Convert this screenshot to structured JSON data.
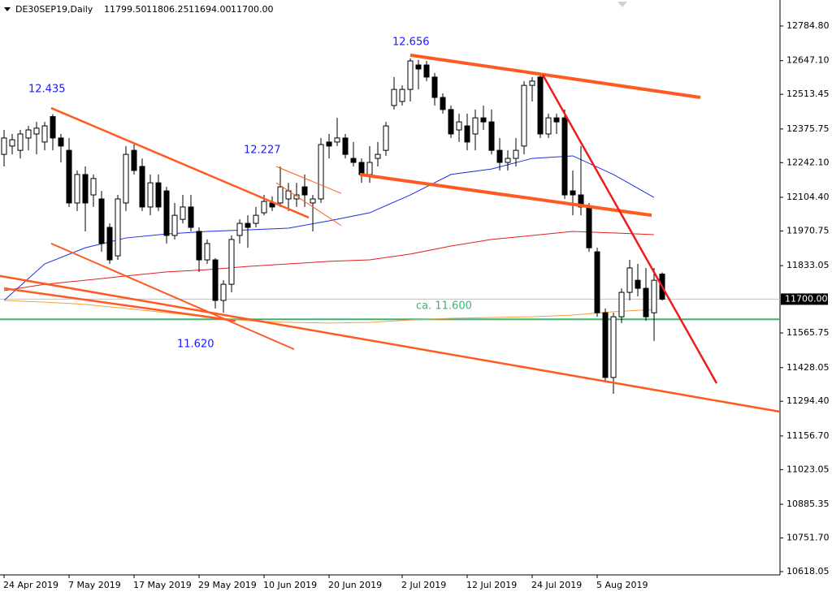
{
  "chart_data": {
    "type": "candlestick",
    "title": "DE30SEP19,Daily",
    "ohlc_labels": [
      "11799.50",
      "11806.25",
      "11694.00",
      "11700.00"
    ],
    "categories": [
      "24 Apr 2019",
      null,
      null,
      null,
      null,
      null,
      null,
      null,
      "7 May 2019",
      null,
      null,
      null,
      null,
      null,
      null,
      null,
      "17 May 2019",
      null,
      null,
      null,
      null,
      null,
      null,
      null,
      "29 May 2019",
      null,
      null,
      null,
      null,
      null,
      null,
      null,
      "10 Jun 2019",
      null,
      null,
      null,
      null,
      null,
      null,
      null,
      "20 Jun 2019",
      null,
      null,
      null,
      null,
      null,
      null,
      null,
      null,
      "2 Jul 2019",
      null,
      null,
      null,
      null,
      null,
      null,
      null,
      "12 Jul 2019",
      null,
      null,
      null,
      null,
      null,
      null,
      null,
      "24 Jul 2019",
      null,
      null,
      null,
      null,
      null,
      null,
      null,
      "5 Aug 2019",
      null,
      null,
      null,
      null,
      null,
      null,
      null,
      null
    ],
    "open": [
      12275,
      12308,
      12291,
      12340,
      12356,
      12324,
      12425,
      12340,
      12291,
      12082,
      12195,
      12114,
      12098,
      11985,
      11872,
      12082,
      12291,
      12227,
      12066,
      12162,
      12130,
      11953,
      12017,
      12066,
      11969,
      11856,
      11856,
      11695,
      11759,
      11953,
      12001,
      12001,
      12043,
      12082,
      12082,
      12098,
      12098,
      12146,
      12082,
      12098,
      12324,
      12324,
      12340,
      12259,
      12243,
      12195,
      12259,
      12291,
      12469,
      12485,
      12533,
      12630,
      12630,
      12582,
      12501,
      12453,
      12372,
      12388,
      12356,
      12420,
      12404,
      12291,
      12243,
      12259,
      12308,
      12549,
      12582,
      12356,
      12420,
      12420,
      12130,
      12114,
      12066,
      11888,
      11646,
      11389,
      11630,
      11727,
      11775,
      11743,
      11646,
      11799.5
    ],
    "high": [
      12372,
      12356,
      12372,
      12388,
      12404,
      12404,
      12435,
      12356,
      12340,
      12211,
      12227,
      12195,
      12130,
      12001,
      12114,
      12308,
      12314,
      12259,
      12195,
      12195,
      12146,
      12082,
      12114,
      12114,
      11985,
      11937,
      11863,
      11775,
      11953,
      12017,
      12033,
      12066,
      12114,
      12108,
      12227,
      12162,
      12162,
      12195,
      12114,
      12340,
      12356,
      12420,
      12356,
      12324,
      12259,
      12308,
      12324,
      12404,
      12582,
      12549,
      12656,
      12650,
      12646,
      12598,
      12517,
      12469,
      12437,
      12437,
      12453,
      12469,
      12453,
      12340,
      12291,
      12340,
      12566,
      12582,
      12598,
      12437,
      12437,
      12453,
      12211,
      12308,
      12082,
      11904,
      11663,
      11646,
      11743,
      11856,
      11840,
      11824,
      11824,
      11806.25
    ],
    "low": [
      12227,
      12275,
      12259,
      12291,
      12275,
      12291,
      12291,
      12243,
      12066,
      12050,
      11969,
      12066,
      11888,
      11840,
      11856,
      12050,
      12195,
      12050,
      12033,
      12050,
      11921,
      11937,
      12001,
      11969,
      11808,
      11840,
      11663,
      11646,
      11727,
      11921,
      11904,
      11985,
      12033,
      12050,
      12066,
      12050,
      12066,
      12066,
      11969,
      12082,
      12259,
      12308,
      12259,
      12227,
      12162,
      12162,
      12227,
      12269,
      12453,
      12469,
      12485,
      12533,
      12566,
      12469,
      12437,
      12340,
      12324,
      12291,
      12291,
      12372,
      12275,
      12211,
      12211,
      12227,
      12275,
      12485,
      12340,
      12340,
      12356,
      12098,
      12033,
      12033,
      11888,
      11630,
      11372,
      11324,
      11605,
      11695,
      11711,
      11614,
      11534,
      11694
    ],
    "close": [
      12340,
      12333,
      12356,
      12372,
      12379,
      12388,
      12340,
      12308,
      12082,
      12195,
      12082,
      12179,
      11921,
      11856,
      12098,
      12275,
      12211,
      12066,
      12162,
      12066,
      11953,
      12033,
      12066,
      11985,
      11856,
      11921,
      11695,
      11759,
      11937,
      12001,
      11985,
      12033,
      12088,
      12066,
      12146,
      12130,
      12114,
      12114,
      12098,
      12314,
      12308,
      12340,
      12275,
      12243,
      12195,
      12243,
      12275,
      12388,
      12533,
      12533,
      12646,
      12614,
      12582,
      12501,
      12453,
      12356,
      12404,
      12324,
      12420,
      12404,
      12291,
      12243,
      12259,
      12291,
      12549,
      12566,
      12356,
      12420,
      12404,
      12114,
      12114,
      12066,
      11904,
      11646,
      11389,
      11630,
      11727,
      11824,
      11743,
      11630,
      11775,
      11700
    ],
    "moving_averages": [
      {
        "color": "#1c2fe0",
        "x": [
          0,
          5,
          10,
          15,
          20,
          25,
          30,
          35,
          40,
          45,
          50,
          55,
          60,
          65,
          70,
          75,
          80
        ],
        "values": [
          11695,
          11840,
          11904,
          11943,
          11959,
          11969,
          11975,
          11982,
          12011,
          12043,
          12114,
          12195,
          12217,
          12259,
          12269,
          12195,
          12104
        ]
      },
      {
        "color": "#e02020",
        "x": [
          0,
          5,
          10,
          15,
          20,
          25,
          30,
          35,
          40,
          45,
          50,
          55,
          60,
          65,
          70,
          75,
          80
        ],
        "values": [
          11734,
          11759,
          11775,
          11792,
          11808,
          11817,
          11830,
          11840,
          11850,
          11856,
          11879,
          11911,
          11937,
          11953,
          11969,
          11963,
          11956
        ]
      },
      {
        "color": "#f0a040",
        "x": [
          0,
          5,
          10,
          15,
          20,
          25,
          30,
          35,
          40,
          45,
          50,
          55,
          60,
          65,
          70,
          75,
          80
        ],
        "values": [
          11695,
          11688,
          11679,
          11663,
          11646,
          11630,
          11614,
          11608,
          11605,
          11608,
          11617,
          11624,
          11627,
          11630,
          11637,
          11650,
          11659
        ]
      }
    ],
    "trendlines": [
      {
        "color": "#ff5a1f",
        "x": [
          5.8,
          37.5
        ],
        "values": [
          12459,
          12024
        ]
      },
      {
        "color": "#ff5a1f",
        "x": [
          5.8,
          35.7
        ],
        "values": [
          11921,
          11501
        ]
      },
      {
        "color": "#ff5a1f",
        "x": [
          -0.5,
          95.5
        ],
        "values": [
          11792,
          11253
        ]
      },
      {
        "color": "#ff5a1f",
        "x": [
          0,
          28.5
        ],
        "values": [
          11743,
          11614
        ]
      },
      {
        "color": "#ff5a1f",
        "x": [
          33.5,
          41.5
        ],
        "values": [
          12227,
          12120
        ]
      },
      {
        "color": "#ff5a1f",
        "x": [
          33.5,
          41.5
        ],
        "values": [
          12162,
          11992
        ]
      },
      {
        "color": "#ff5a1f",
        "x": [
          50,
          85.7
        ],
        "values": [
          12669,
          12501
        ]
      },
      {
        "color": "#ff5a1f",
        "x": [
          43.8,
          79.7
        ],
        "values": [
          12195,
          12033
        ]
      },
      {
        "color": "#ee1c1c",
        "x": [
          66.3,
          87.7
        ],
        "values": [
          12591,
          11366
        ]
      }
    ],
    "hlines": [
      {
        "value": 11620,
        "color": "#3cb371"
      },
      {
        "value": 11700,
        "color": "#c0c0c0"
      }
    ],
    "annotations": [
      {
        "text": "12.435",
        "color": "#1a1aff"
      },
      {
        "text": "12.227",
        "color": "#1a1aff"
      },
      {
        "text": "12.656",
        "color": "#1a1aff"
      },
      {
        "text": "11.620",
        "color": "#1a1aff"
      },
      {
        "text": "ca. 11.600",
        "color": "#3cb371"
      }
    ],
    "last_price": {
      "value": 11700,
      "label": "11700.00"
    },
    "ylim": [
      10605,
      12888
    ],
    "yticks": [
      {
        "value": 12784.8,
        "label": "12784.80"
      },
      {
        "value": 12647.1,
        "label": "12647.10"
      },
      {
        "value": 12513.45,
        "label": "12513.45"
      },
      {
        "value": 12375.75,
        "label": "12375.75"
      },
      {
        "value": 12242.1,
        "label": "12242.10"
      },
      {
        "value": 12104.4,
        "label": "12104.40"
      },
      {
        "value": 11970.75,
        "label": "11970.75"
      },
      {
        "value": 11833.05,
        "label": "11833.05"
      },
      {
        "value": 11565.75,
        "label": "11565.75"
      },
      {
        "value": 11428.05,
        "label": "11428.05"
      },
      {
        "value": 11294.4,
        "label": "11294.40"
      },
      {
        "value": 11156.7,
        "label": "11156.70"
      },
      {
        "value": 11023.05,
        "label": "11023.05"
      },
      {
        "value": 10885.35,
        "label": "10885.35"
      },
      {
        "value": 10751.7,
        "label": "10751.70"
      },
      {
        "value": 10618.05,
        "label": "10618.05"
      }
    ]
  }
}
